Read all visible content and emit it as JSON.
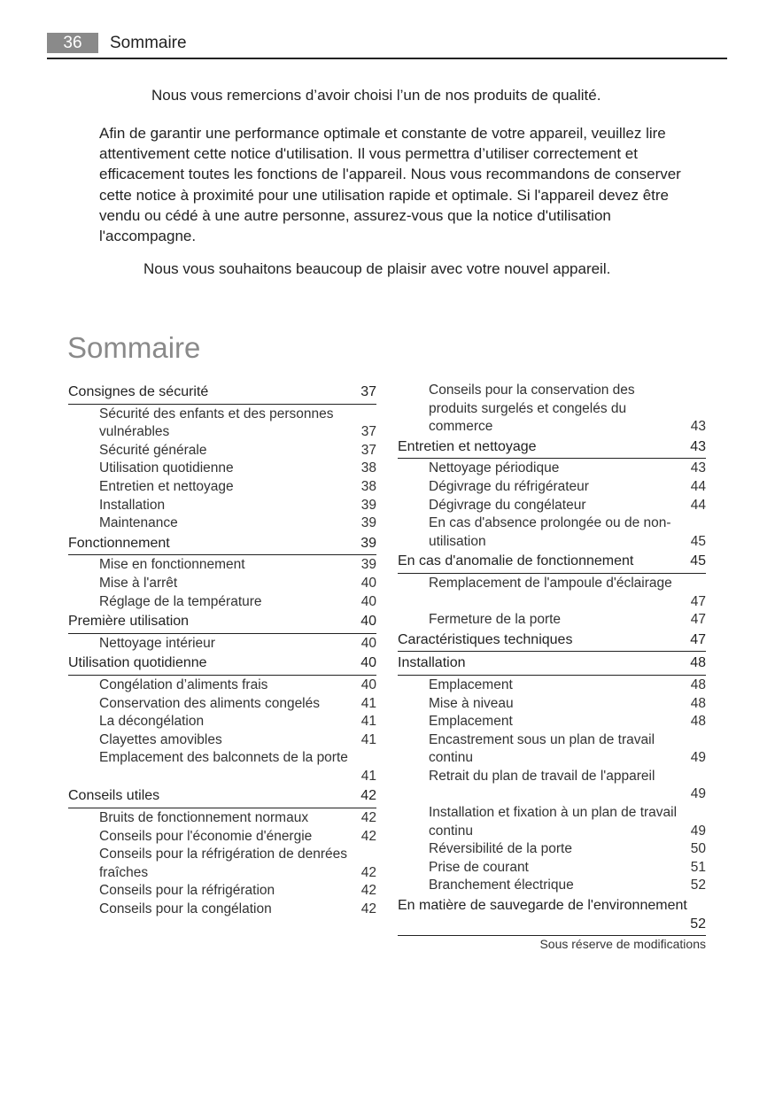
{
  "header": {
    "page_number": "36",
    "title": "Sommaire"
  },
  "intro": {
    "p1": "Nous vous remercions d’avoir choisi l’un de nos produits de qualité.",
    "p2": "Afin de garantir une performance optimale et constante de votre appareil, veuillez lire attentivement cette notice d'utilisation. Il vous permettra d’utiliser correctement et efficacement toutes les fonctions de l'appareil. Nous vous recommandons de conserver cette notice à proximité pour une utilisation rapide et optimale. Si l'appareil devez être vendu ou cédé à une autre personne, assurez-vous que la notice d'utilisation l'accompagne.",
    "p3": "Nous vous souhaitons beaucoup de plaisir avec votre nouvel appareil."
  },
  "toc_title": "Sommaire",
  "toc_left": [
    {
      "type": "sec",
      "title": "Consignes de sécurité",
      "page": "37"
    },
    {
      "type": "sub",
      "title": "Sécurité des enfants et des personnes vulnérables",
      "page": "37"
    },
    {
      "type": "sub",
      "title": "Sécurité générale",
      "page": "37"
    },
    {
      "type": "sub",
      "title": "Utilisation quotidienne",
      "page": "38"
    },
    {
      "type": "sub",
      "title": "Entretien et nettoyage",
      "page": "38"
    },
    {
      "type": "sub",
      "title": "Installation",
      "page": "39"
    },
    {
      "type": "sub",
      "title": "Maintenance",
      "page": "39"
    },
    {
      "type": "sec",
      "title": "Fonctionnement",
      "page": "39"
    },
    {
      "type": "sub",
      "title": "Mise en fonctionnement",
      "page": "39"
    },
    {
      "type": "sub",
      "title": "Mise à l'arrêt",
      "page": "40"
    },
    {
      "type": "sub",
      "title": "Réglage de la température",
      "page": "40"
    },
    {
      "type": "sec",
      "title": "Première utilisation",
      "page": "40"
    },
    {
      "type": "sub",
      "title": "Nettoyage intérieur",
      "page": "40"
    },
    {
      "type": "sec",
      "title": "Utilisation quotidienne",
      "page": "40"
    },
    {
      "type": "sub",
      "title": "Congélation d’aliments frais",
      "page": "40"
    },
    {
      "type": "sub",
      "title": "Conservation des aliments congelés",
      "page": "41"
    },
    {
      "type": "sub",
      "title": "La décongélation",
      "page": "41"
    },
    {
      "type": "sub",
      "title": "Clayettes amovibles",
      "page": "41"
    },
    {
      "type": "sub",
      "title": "Emplacement des balconnets de la porte",
      "page": "41",
      "own": true
    },
    {
      "type": "sec",
      "title": "Conseils utiles",
      "page": "42"
    },
    {
      "type": "sub",
      "title": "Bruits de fonctionnement normaux",
      "page": "42"
    },
    {
      "type": "sub",
      "title": "Conseils pour l'économie d'énergie",
      "page": "42"
    },
    {
      "type": "sub",
      "title": "Conseils pour la réfrigération de denrées fraîches",
      "page": "42"
    },
    {
      "type": "sub",
      "title": "Conseils pour la réfrigération",
      "page": "42"
    },
    {
      "type": "sub",
      "title": "Conseils pour la congélation",
      "page": "42"
    }
  ],
  "toc_right": [
    {
      "type": "sub",
      "title": "Conseils pour la conservation des produits surgelés et congelés du commerce",
      "page": "43"
    },
    {
      "type": "sec",
      "title": "Entretien et nettoyage",
      "page": "43"
    },
    {
      "type": "sub",
      "title": "Nettoyage périodique",
      "page": "43"
    },
    {
      "type": "sub",
      "title": "Dégivrage du réfrigérateur",
      "page": "44"
    },
    {
      "type": "sub",
      "title": "Dégivrage du congélateur",
      "page": "44"
    },
    {
      "type": "sub",
      "title": "En cas d'absence prolongée ou de non-utilisation",
      "page": "45"
    },
    {
      "type": "sec",
      "title": "En cas d'anomalie de fonctionnement",
      "page": "45"
    },
    {
      "type": "sub",
      "title": "Remplacement de l'ampoule d'éclairage",
      "page": "47",
      "own": true
    },
    {
      "type": "sub",
      "title": "Fermeture de la porte",
      "page": "47"
    },
    {
      "type": "sec",
      "title": "Caractéristiques techniques",
      "page": "47"
    },
    {
      "type": "sec",
      "title": "Installation",
      "page": "48"
    },
    {
      "type": "sub",
      "title": "Emplacement",
      "page": "48"
    },
    {
      "type": "sub",
      "title": "Mise à niveau",
      "page": "48"
    },
    {
      "type": "sub",
      "title": "Emplacement",
      "page": "48"
    },
    {
      "type": "sub",
      "title": "Encastrement sous un plan de travail continu",
      "page": "49"
    },
    {
      "type": "sub",
      "title": "Retrait du plan de travail de l'appareil",
      "page": "49",
      "own": true
    },
    {
      "type": "sub",
      "title": "Installation et fixation à un plan de travail continu",
      "page": "49"
    },
    {
      "type": "sub",
      "title": "Réversibilité de la porte",
      "page": "50"
    },
    {
      "type": "sub",
      "title": "Prise de courant",
      "page": "51"
    },
    {
      "type": "sub",
      "title": "Branchement électrique",
      "page": "52"
    },
    {
      "type": "sec",
      "title": "En matière de sauvegarde de l'environnement",
      "page": "52",
      "own": true
    }
  ],
  "footer": "Sous réserve de modifications"
}
